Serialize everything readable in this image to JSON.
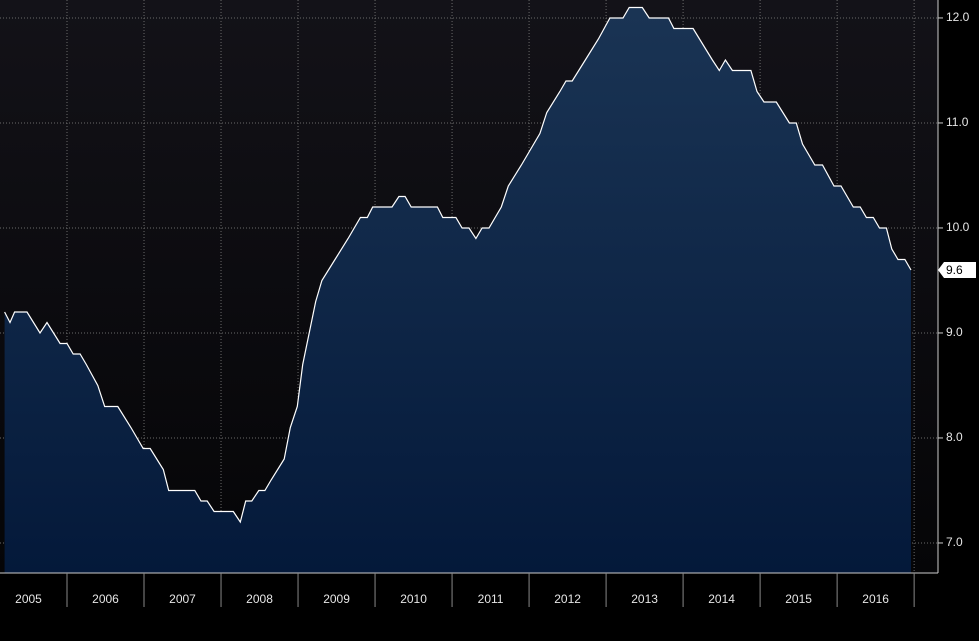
{
  "chart_data": {
    "type": "area",
    "x": [
      2005.19,
      2005.26,
      2005.32,
      2005.48,
      2005.65,
      2005.74,
      2005.91,
      2006.0,
      2006.08,
      2006.17,
      2006.25,
      2006.4,
      2006.49,
      2006.66,
      2006.83,
      2006.99,
      2007.08,
      2007.25,
      2007.32,
      2007.66,
      2007.74,
      2007.82,
      2007.91,
      2008.16,
      2008.25,
      2008.32,
      2008.4,
      2008.49,
      2008.57,
      2008.65,
      2008.82,
      2008.9,
      2008.99,
      2009.06,
      2009.23,
      2009.31,
      2009.48,
      2009.65,
      2009.81,
      2009.9,
      2009.97,
      2010.22,
      2010.31,
      2010.39,
      2010.47,
      2010.81,
      2010.88,
      2011.05,
      2011.13,
      2011.22,
      2011.31,
      2011.39,
      2011.48,
      2011.64,
      2011.73,
      2011.9,
      2012.14,
      2012.23,
      2012.4,
      2012.48,
      2012.56,
      2012.73,
      2012.9,
      2013.05,
      2013.22,
      2013.3,
      2013.47,
      2013.56,
      2013.81,
      2013.88,
      2014.13,
      2014.38,
      2014.47,
      2014.55,
      2014.64,
      2014.88,
      2014.96,
      2015.05,
      2015.21,
      2015.38,
      2015.47,
      2015.55,
      2015.71,
      2015.81,
      2015.96,
      2016.05,
      2016.21,
      2016.3,
      2016.38,
      2016.47,
      2016.55,
      2016.64,
      2016.71,
      2016.79,
      2016.88,
      2016.96
    ],
    "values": [
      9.2,
      9.1,
      9.2,
      9.2,
      9.0,
      9.1,
      8.9,
      8.9,
      8.8,
      8.8,
      8.7,
      8.5,
      8.3,
      8.3,
      8.1,
      7.9,
      7.9,
      7.7,
      7.5,
      7.5,
      7.4,
      7.4,
      7.3,
      7.3,
      7.2,
      7.4,
      7.4,
      7.5,
      7.5,
      7.6,
      7.8,
      8.1,
      8.3,
      8.7,
      9.3,
      9.5,
      9.7,
      9.9,
      10.1,
      10.1,
      10.2,
      10.2,
      10.3,
      10.3,
      10.2,
      10.2,
      10.1,
      10.1,
      10.0,
      10.0,
      9.9,
      10.0,
      10.0,
      10.2,
      10.4,
      10.6,
      10.9,
      11.1,
      11.3,
      11.4,
      11.4,
      11.6,
      11.8,
      12.0,
      12.0,
      12.1,
      12.1,
      12.0,
      12.0,
      11.9,
      11.9,
      11.6,
      11.5,
      11.6,
      11.5,
      11.5,
      11.3,
      11.2,
      11.2,
      11.0,
      11.0,
      10.8,
      10.6,
      10.6,
      10.4,
      10.4,
      10.2,
      10.2,
      10.1,
      10.1,
      10.0,
      10.0,
      9.8,
      9.7,
      9.7,
      9.6
    ],
    "line_color": "#ffffff",
    "color": "#13304f",
    "xlim": [
      2005.13,
      2017.31
    ],
    "xticks": [
      2005,
      2006,
      2007,
      2008,
      2009,
      2010,
      2011,
      2012,
      2013,
      2014,
      2015,
      2016
    ],
    "ylim": [
      6.714,
      12.171
    ],
    "yticks": [
      {
        "value": 7,
        "label": "7.0"
      },
      {
        "value": 8,
        "label": "8.0"
      },
      {
        "value": 9,
        "label": "9.0"
      },
      {
        "value": 10,
        "label": "10.0"
      },
      {
        "value": 11,
        "label": "11.0"
      },
      {
        "value": 12,
        "label": "12.0"
      }
    ],
    "grid": true
  }
}
